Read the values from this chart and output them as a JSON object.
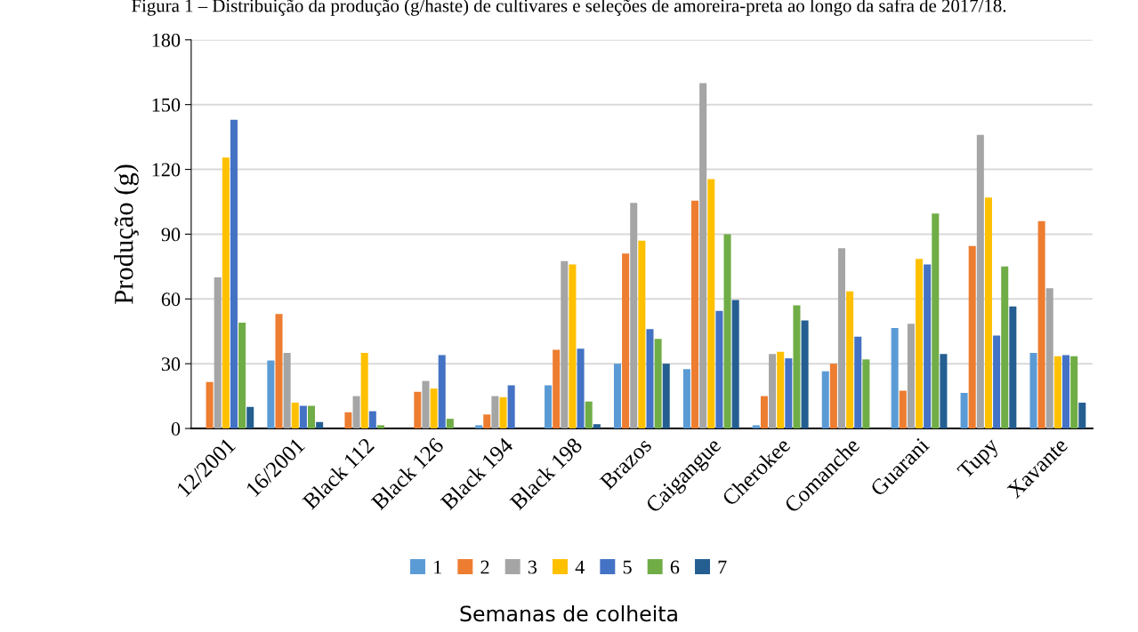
{
  "chart_data": {
    "type": "bar",
    "title": "Figura 1 – Distribuição da produção (g/haste) de cultivares e seleções de amoreira-preta ao longo da safra de 2017/18.",
    "xlabel": "Semanas de colheita",
    "ylabel": "Produção (g)",
    "categories": [
      "12/2001",
      "16/2001",
      "Black 112",
      "Black 126",
      "Black 194",
      "Black 198",
      "Brazos",
      "Caigangue",
      "Cherokee",
      "Comanche",
      "Guarani",
      "Tupy",
      "Xavante"
    ],
    "series": [
      {
        "name": "1",
        "color": "#5b9bd5",
        "values": [
          0,
          31.5,
          0,
          0,
          1.5,
          20,
          30,
          27.5,
          1.5,
          26.5,
          46.5,
          16.5,
          35
        ]
      },
      {
        "name": "2",
        "color": "#ed7d31",
        "values": [
          21.5,
          53,
          7.5,
          17,
          6.5,
          36.5,
          81,
          105.5,
          15,
          30,
          17.5,
          84.5,
          96
        ]
      },
      {
        "name": "3",
        "color": "#a5a5a5",
        "values": [
          70,
          35,
          15,
          22,
          15,
          77.5,
          104.5,
          160,
          34.5,
          83.5,
          48.5,
          136,
          65
        ]
      },
      {
        "name": "4",
        "color": "#ffc000",
        "values": [
          125.5,
          12,
          35,
          18.5,
          14.5,
          76,
          87,
          115.5,
          35.5,
          63.5,
          78.5,
          107,
          33.5
        ]
      },
      {
        "name": "5",
        "color": "#4472c4",
        "values": [
          143,
          10.5,
          8,
          34,
          20,
          37,
          46,
          54.5,
          32.5,
          42.5,
          76,
          43,
          34
        ]
      },
      {
        "name": "6",
        "color": "#70ad47",
        "values": [
          49,
          10.5,
          1.5,
          4.5,
          0,
          12.5,
          41.5,
          90,
          57,
          32,
          99.5,
          75,
          33.5
        ]
      },
      {
        "name": "7",
        "color": "#255e91",
        "values": [
          10,
          3,
          0,
          0,
          0,
          2,
          30,
          59.5,
          50,
          0,
          34.5,
          56.5,
          12
        ]
      }
    ],
    "ylim": [
      0,
      180
    ],
    "yticks": [
      0,
      30,
      60,
      90,
      120,
      150,
      180
    ],
    "grid": "y",
    "legend": "bottom"
  }
}
